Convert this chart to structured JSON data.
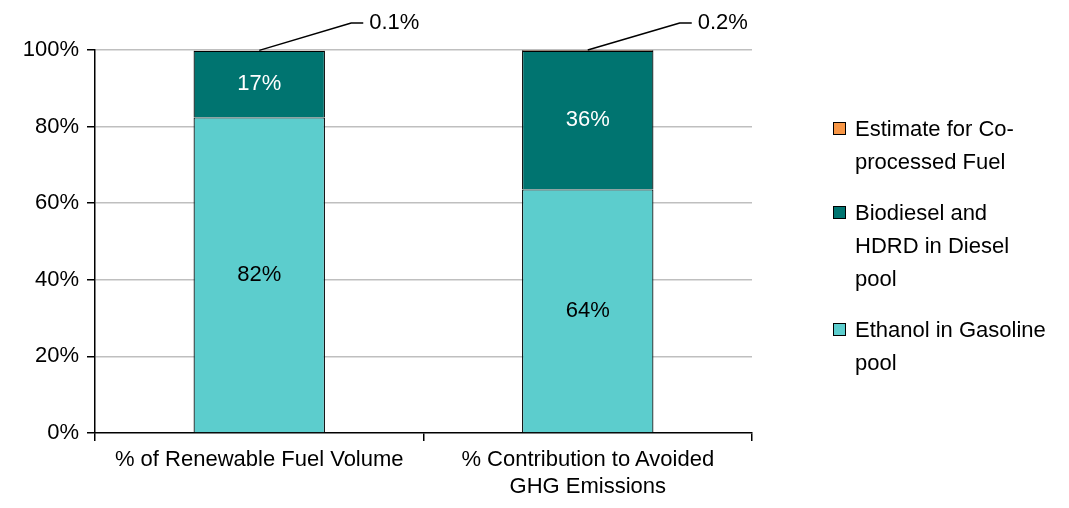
{
  "chart_data": {
    "type": "bar",
    "stacked": true,
    "categories": [
      "% of Renewable Fuel Volume",
      "% Contribution to Avoided GHG Emissions"
    ],
    "series": [
      {
        "name": "Ethanol in Gasoline pool",
        "color": "#5ccdcd",
        "values": [
          82.4,
          63.6
        ],
        "value_labels": [
          "82%",
          "64%"
        ]
      },
      {
        "name": "Biodiesel and HDRD in Diesel pool",
        "color": "#007470",
        "values": [
          17.4,
          36.2
        ],
        "value_labels": [
          "17%",
          "36%"
        ]
      },
      {
        "name": "Estimate for Co-processed Fuel",
        "color": "#f79646",
        "values": [
          0.1,
          0.2
        ],
        "value_labels": [
          "0.1%",
          "0.2%"
        ]
      }
    ],
    "ylim": [
      0,
      100
    ],
    "yticks": [
      {
        "value": 0,
        "label": "0%"
      },
      {
        "value": 20,
        "label": "20%"
      },
      {
        "value": 40,
        "label": "40%"
      },
      {
        "value": 60,
        "label": "60%"
      },
      {
        "value": 80,
        "label": "80%"
      },
      {
        "value": 100,
        "label": "100%"
      }
    ],
    "grid": "y",
    "legend": "right"
  }
}
